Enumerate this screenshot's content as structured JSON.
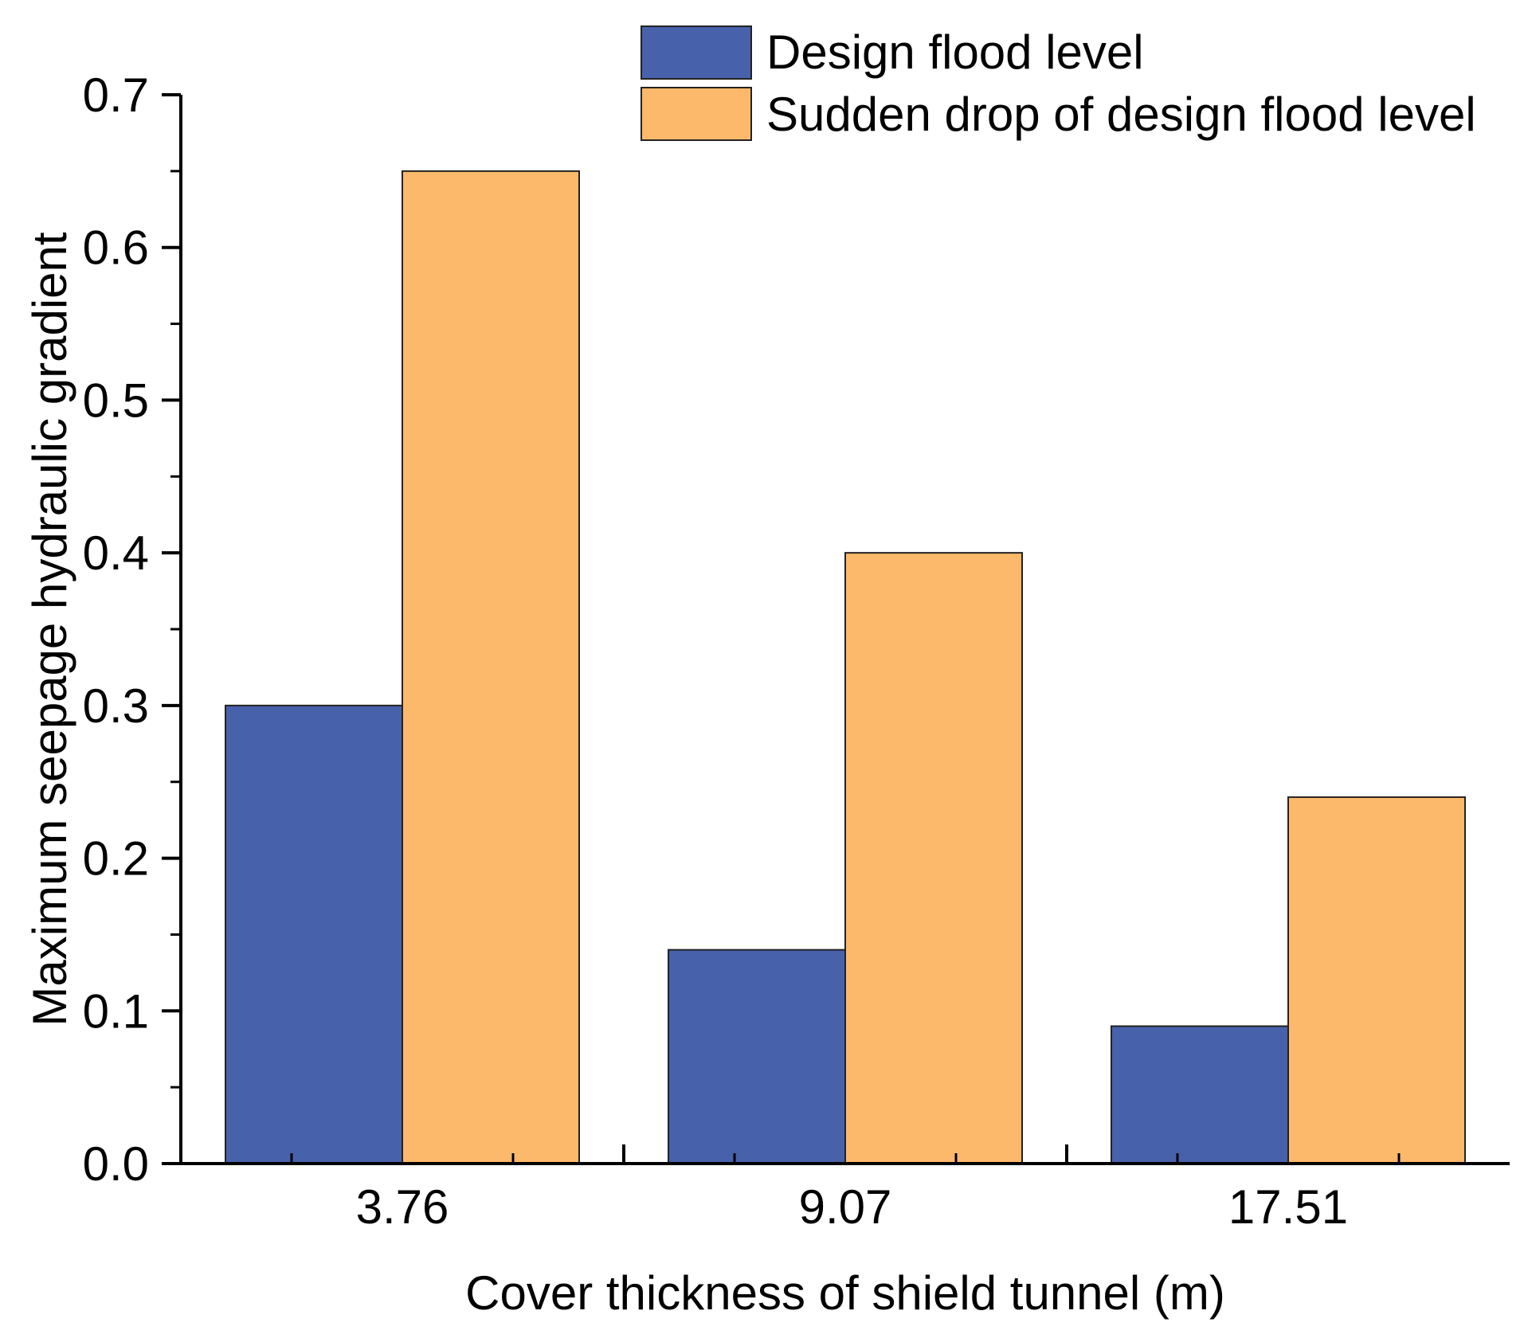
{
  "chart_data": {
    "type": "bar",
    "title": "",
    "xlabel": "Cover thickness of shield tunnel (m)",
    "ylabel": "Maximum seepage hydraulic gradient",
    "categories": [
      "3.76",
      "9.07",
      "17.51"
    ],
    "series": [
      {
        "name": "Design flood level",
        "values": [
          0.3,
          0.14,
          0.09
        ]
      },
      {
        "name": "Sudden drop of design flood level",
        "values": [
          0.65,
          0.4,
          0.24
        ]
      }
    ],
    "ylim": [
      0,
      0.7
    ],
    "yticks": [
      "0.0",
      "0.1",
      "0.2",
      "0.3",
      "0.4",
      "0.5",
      "0.6",
      "0.7"
    ],
    "grid": false,
    "legend_position": "top-right"
  },
  "colors": {
    "series": [
      "#4861AB",
      "#FDB96B"
    ],
    "axis": "#000000",
    "bar_stroke": "#222222"
  }
}
